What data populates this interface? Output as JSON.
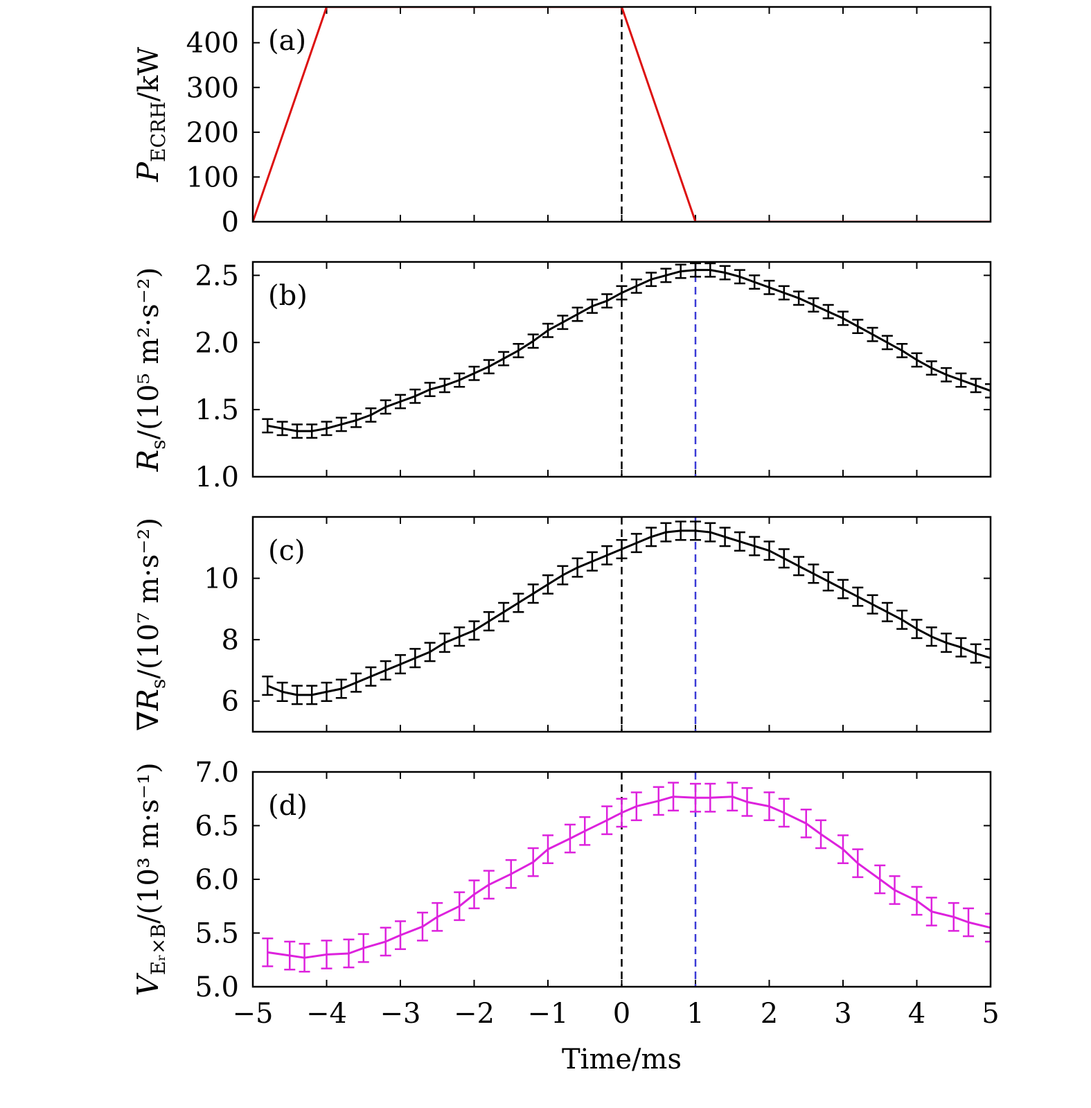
{
  "x_axis": {
    "label": "Time/ms",
    "range": [
      -5,
      5
    ],
    "ticks": [
      -5,
      -4,
      -3,
      -2,
      -1,
      0,
      1,
      2,
      3,
      4,
      5
    ],
    "tick_labels": [
      "−5",
      "−4",
      "−3",
      "−2",
      "−1",
      "0",
      "1",
      "2",
      "3",
      "4",
      "5"
    ]
  },
  "reference_lines": [
    {
      "x": 0,
      "color": "#000000",
      "style": "dashed",
      "panels": [
        "a",
        "b",
        "c",
        "d"
      ]
    },
    {
      "x": 1,
      "color": "#3a3ad6",
      "style": "dashed",
      "panels": [
        "b",
        "c",
        "d"
      ]
    }
  ],
  "chart_data": [
    {
      "type": "line",
      "panel_label": "(a)",
      "ylabel_main": "P",
      "ylabel_sub": "ECRH",
      "ylabel_unit": "/kW",
      "ylim": [
        0,
        480
      ],
      "yticks": [
        0,
        100,
        200,
        300,
        400
      ],
      "ytick_labels": [
        "0",
        "100",
        "200",
        "300",
        "400"
      ],
      "color": "#dd1111",
      "x": [
        -5,
        -4,
        0,
        1,
        5
      ],
      "y": [
        0,
        480,
        480,
        0,
        0
      ]
    },
    {
      "type": "line",
      "panel_label": "(b)",
      "ylabel_main": "R",
      "ylabel_sub": "s",
      "ylabel_unit": "/(10⁵ m²·s⁻²)",
      "ylim": [
        1.0,
        2.6
      ],
      "yticks": [
        1.0,
        1.5,
        2.0,
        2.5
      ],
      "ytick_labels": [
        "1.0",
        "1.5",
        "2.0",
        "2.5"
      ],
      "color": "#000000",
      "errorbars": true,
      "x": [
        -4.8,
        -4.6,
        -4.4,
        -4.2,
        -4.0,
        -3.8,
        -3.6,
        -3.4,
        -3.2,
        -3.0,
        -2.8,
        -2.6,
        -2.4,
        -2.2,
        -2.0,
        -1.8,
        -1.6,
        -1.4,
        -1.2,
        -1.0,
        -0.8,
        -0.6,
        -0.4,
        -0.2,
        0.0,
        0.2,
        0.4,
        0.6,
        0.8,
        1.0,
        1.2,
        1.4,
        1.6,
        1.8,
        2.0,
        2.2,
        2.4,
        2.6,
        2.8,
        3.0,
        3.2,
        3.4,
        3.6,
        3.8,
        4.0,
        4.2,
        4.4,
        4.6,
        4.8,
        5.0
      ],
      "y": [
        1.38,
        1.36,
        1.34,
        1.34,
        1.36,
        1.39,
        1.42,
        1.46,
        1.52,
        1.56,
        1.6,
        1.65,
        1.68,
        1.72,
        1.77,
        1.82,
        1.88,
        1.94,
        2.01,
        2.09,
        2.15,
        2.21,
        2.27,
        2.31,
        2.37,
        2.42,
        2.47,
        2.5,
        2.53,
        2.54,
        2.54,
        2.52,
        2.49,
        2.45,
        2.41,
        2.37,
        2.33,
        2.28,
        2.23,
        2.18,
        2.12,
        2.06,
        2.0,
        1.94,
        1.87,
        1.81,
        1.76,
        1.72,
        1.68,
        1.64
      ],
      "err": 0.05
    },
    {
      "type": "line",
      "panel_label": "(c)",
      "ylabel_main": "∇R",
      "ylabel_sub": "s",
      "ylabel_unit": "/(10⁷ m·s⁻²)",
      "ylim": [
        5.0,
        12.0
      ],
      "yticks": [
        6,
        8,
        10
      ],
      "ytick_labels": [
        "6",
        "8",
        "10"
      ],
      "color": "#000000",
      "errorbars": true,
      "x": [
        -4.8,
        -4.6,
        -4.4,
        -4.2,
        -4.0,
        -3.8,
        -3.6,
        -3.4,
        -3.2,
        -3.0,
        -2.8,
        -2.6,
        -2.4,
        -2.2,
        -2.0,
        -1.8,
        -1.6,
        -1.4,
        -1.2,
        -1.0,
        -0.8,
        -0.6,
        -0.4,
        -0.2,
        0.0,
        0.2,
        0.4,
        0.6,
        0.8,
        1.0,
        1.2,
        1.4,
        1.6,
        1.8,
        2.0,
        2.2,
        2.4,
        2.6,
        2.8,
        3.0,
        3.2,
        3.4,
        3.6,
        3.8,
        4.0,
        4.2,
        4.4,
        4.6,
        4.8,
        5.0
      ],
      "y": [
        6.5,
        6.3,
        6.2,
        6.2,
        6.3,
        6.4,
        6.6,
        6.8,
        7.0,
        7.2,
        7.4,
        7.6,
        7.9,
        8.1,
        8.3,
        8.6,
        8.9,
        9.2,
        9.5,
        9.8,
        10.1,
        10.35,
        10.55,
        10.75,
        10.95,
        11.15,
        11.35,
        11.5,
        11.55,
        11.55,
        11.5,
        11.35,
        11.2,
        11.05,
        10.9,
        10.65,
        10.4,
        10.15,
        9.9,
        9.65,
        9.4,
        9.15,
        8.9,
        8.65,
        8.35,
        8.1,
        7.9,
        7.75,
        7.55,
        7.4
      ],
      "err": 0.3
    },
    {
      "type": "line",
      "panel_label": "(d)",
      "ylabel_main": "V",
      "ylabel_sub": "Eᵣ×B",
      "ylabel_unit": "/(10³ m·s⁻¹)",
      "ylim": [
        5.0,
        7.0
      ],
      "yticks": [
        5.0,
        5.5,
        6.0,
        6.5,
        7.0
      ],
      "ytick_labels": [
        "5.0",
        "5.5",
        "6.0",
        "6.5",
        "7.0"
      ],
      "color": "#dd22dd",
      "errorbars": true,
      "x": [
        -4.8,
        -4.5,
        -4.3,
        -4.0,
        -3.7,
        -3.5,
        -3.2,
        -3.0,
        -2.7,
        -2.5,
        -2.2,
        -2.0,
        -1.8,
        -1.5,
        -1.2,
        -1.0,
        -0.7,
        -0.5,
        -0.2,
        0.0,
        0.2,
        0.5,
        0.7,
        1.0,
        1.2,
        1.5,
        1.7,
        2.0,
        2.2,
        2.5,
        2.7,
        3.0,
        3.2,
        3.5,
        3.7,
        4.0,
        4.2,
        4.5,
        4.7,
        5.0
      ],
      "y": [
        5.32,
        5.29,
        5.27,
        5.3,
        5.31,
        5.36,
        5.42,
        5.48,
        5.56,
        5.65,
        5.75,
        5.86,
        5.95,
        6.05,
        6.16,
        6.28,
        6.38,
        6.45,
        6.55,
        6.62,
        6.68,
        6.73,
        6.77,
        6.76,
        6.76,
        6.77,
        6.72,
        6.68,
        6.62,
        6.52,
        6.42,
        6.28,
        6.15,
        6.0,
        5.9,
        5.8,
        5.7,
        5.65,
        5.6,
        5.55
      ],
      "err": 0.13
    }
  ]
}
